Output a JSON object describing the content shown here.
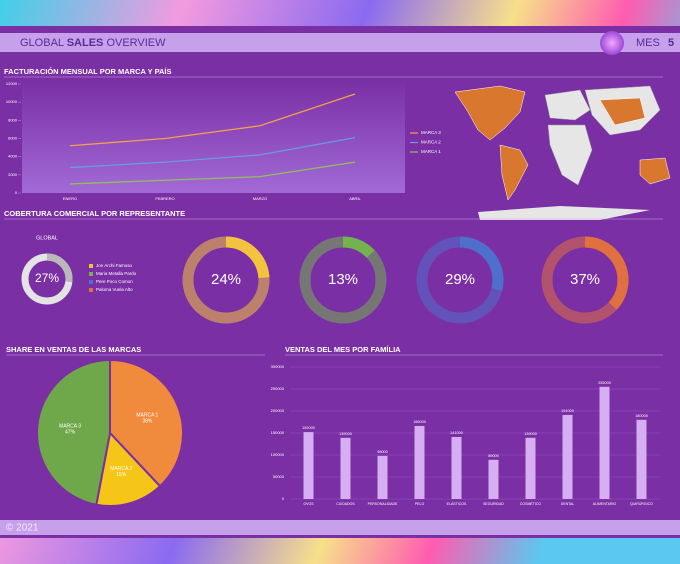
{
  "header": {
    "title": [
      "GLOBAL",
      "SALES",
      "OVERVIEW"
    ],
    "period_label": "MES",
    "period_value": "5"
  },
  "footer": {
    "text": "© 2021"
  },
  "chart_data": [
    {
      "type": "line",
      "title": "FACTURACIÓN MENSUAL POR MARCA Y PAÍS",
      "categories": [
        "ENERO",
        "FEBRERO",
        "MARZO",
        "ABRIL"
      ],
      "series": [
        {
          "name": "MARCA 3",
          "color": "#f5a04a",
          "values": [
            5200,
            6000,
            7400,
            10900
          ]
        },
        {
          "name": "MARCA 2",
          "color": "#6a9ae0",
          "values": [
            2800,
            3400,
            4200,
            6100
          ]
        },
        {
          "name": "MARCA 1",
          "color": "#8fbf5a",
          "values": [
            1000,
            1400,
            1800,
            3400
          ]
        }
      ],
      "ylim": [
        0,
        12000
      ],
      "yticks": [
        0,
        2000,
        4000,
        6000,
        8000,
        10000,
        12000
      ]
    },
    {
      "type": "donut",
      "title": "GLOBAL",
      "values": [
        27
      ],
      "value_labels": [
        "27%"
      ],
      "colors": [
        "#b9b9b9"
      ]
    },
    {
      "type": "donut",
      "title": "COBERTURA COMERCIAL POR REPRESENTANTE",
      "categories": [
        "Jon Archi Famoso",
        "Maria Metalla Pardo",
        "Pere Poco Comon",
        "Paloma Vuela Alto"
      ],
      "values": [
        24,
        13,
        29,
        37
      ],
      "value_labels": [
        "24%",
        "13%",
        "29%",
        "37%"
      ],
      "colors": [
        "#f3c23f",
        "#72b34e",
        "#4f6fcc",
        "#e0703f"
      ]
    },
    {
      "type": "pie",
      "title": "SHARE EN VENTAS DE LAS MARCAS",
      "categories": [
        "MARCA 1",
        "MARCA 2",
        "MARCA 3"
      ],
      "values": [
        38,
        15,
        47
      ],
      "value_labels": [
        "38%",
        "15%",
        "47%"
      ],
      "colors": [
        "#f08a3c",
        "#f5c518",
        "#6fa84a"
      ]
    },
    {
      "type": "bar",
      "title": "VENTAS DEL MES POR FAMÍLIA",
      "categories": [
        "OVOS",
        "CUIDADOS",
        "PERSONALIDADE",
        "PELO",
        "ELÁSTICOS",
        "SEGURIDAD",
        "COSMÉTICO",
        "DENTAL",
        "ALIMENTARIO",
        "QUIRÚRGICO"
      ],
      "values": [
        152000,
        139000,
        98000,
        166000,
        141000,
        89000,
        139000,
        191000,
        255000,
        180000
      ],
      "color": "#d6aef2",
      "ylim": [
        0,
        300000
      ],
      "yticks": [
        0,
        50000,
        100000,
        150000,
        200000,
        250000,
        300000
      ]
    }
  ]
}
